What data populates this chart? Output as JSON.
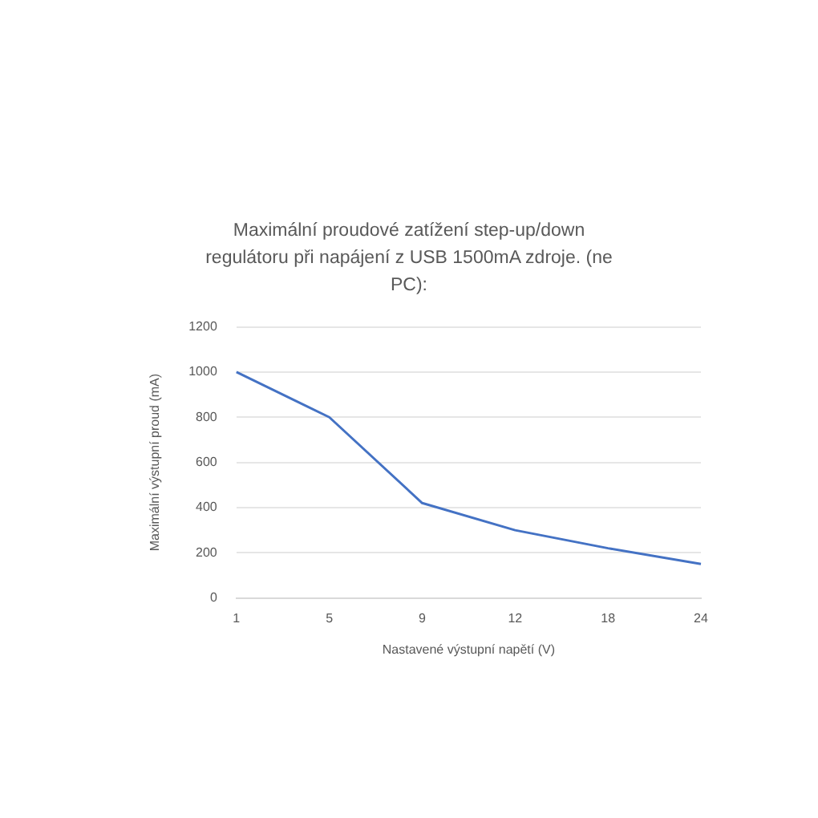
{
  "chart_data": {
    "type": "line",
    "title": "Maximální proudové zatížení step-up/down regulátoru při napájení z USB 1500mA zdroje. (ne PC):",
    "xlabel": "Nastavené výstupní napětí (V)",
    "ylabel": "Maximální výstupní proud (mA)",
    "categories": [
      "1",
      "5",
      "9",
      "12",
      "18",
      "24"
    ],
    "series": [
      {
        "color": "#4472c4",
        "values": [
          1000,
          800,
          420,
          300,
          220,
          150
        ]
      }
    ],
    "ylim": [
      0,
      1200
    ],
    "yticks": [
      0,
      200,
      400,
      600,
      800,
      1000,
      1200
    ],
    "grid": "y",
    "legend": false,
    "marker": "none",
    "line_style": "solid"
  }
}
